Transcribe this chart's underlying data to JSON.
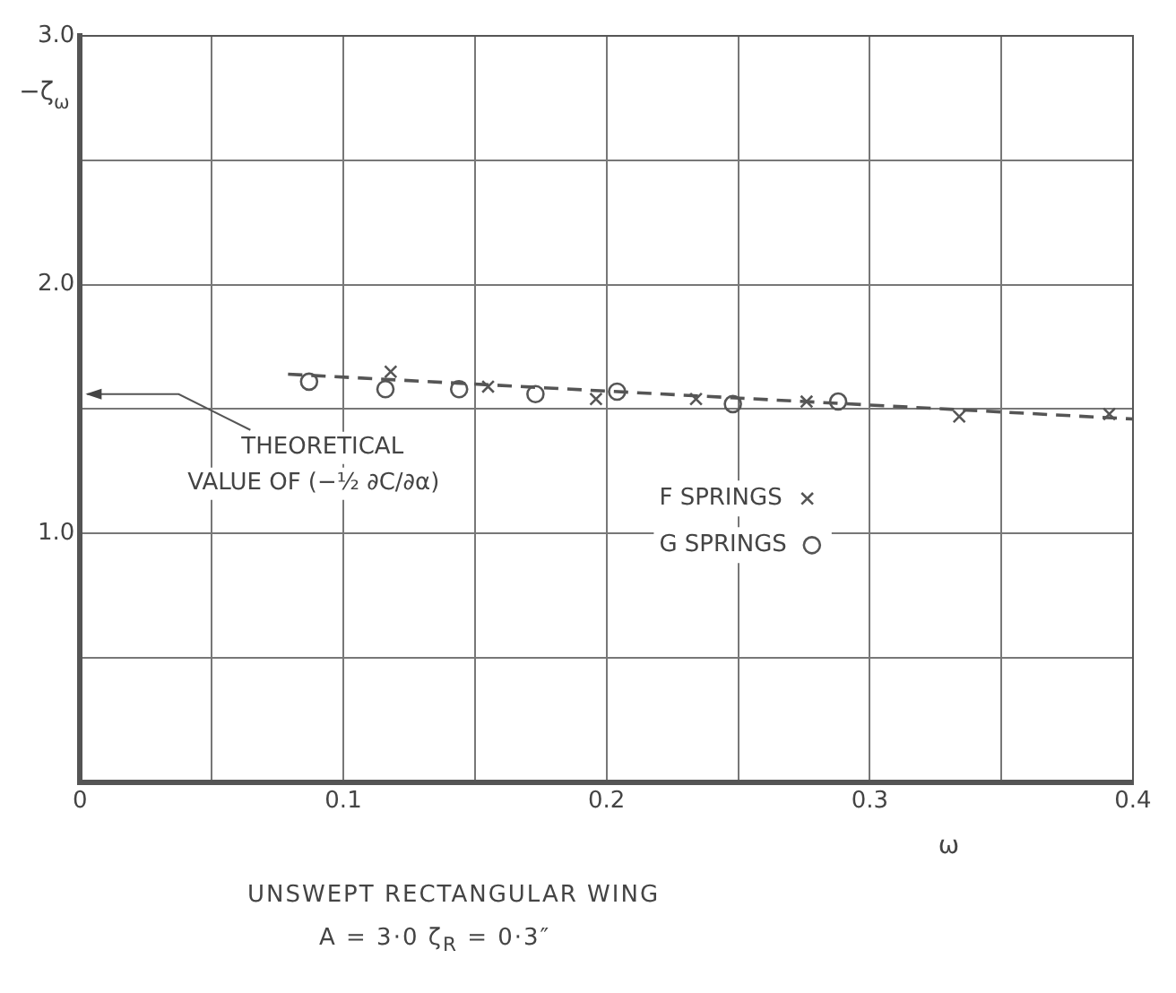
{
  "chart_data": {
    "type": "scatter",
    "xlabel": "ω",
    "ylabel": "−ζ$_{ω}$",
    "xlim": [
      0,
      0.4
    ],
    "ylim": [
      0,
      3
    ],
    "xticks": [
      0,
      {
        "value": 0.05,
        "label": null
      },
      0.1,
      {
        "value": 0.15,
        "label": null
      },
      0.2,
      {
        "value": 0.25,
        "label": null
      },
      0.3,
      {
        "value": 0.35,
        "label": null
      },
      0.4
    ],
    "yticks": [
      {
        "value": 0,
        "label": null
      },
      {
        "value": 0.5,
        "label": null
      },
      {
        "value": 1,
        "label": "1.0"
      },
      {
        "value": 1.5,
        "label": null
      },
      {
        "value": 2,
        "label": "2.0"
      },
      {
        "value": 2.5,
        "label": null
      },
      {
        "value": 3,
        "label": "3.0"
      }
    ],
    "grid": true,
    "legend": "center",
    "series": [
      {
        "name": "F SPRINGS",
        "marker": "cross",
        "color": "#555555",
        "x": [
          0.118,
          0.155,
          0.196,
          0.234,
          0.276,
          0.334,
          0.391
        ],
        "values": [
          1.65,
          1.59,
          1.54,
          1.54,
          1.53,
          1.47,
          1.48
        ]
      },
      {
        "name": "G SPRINGS",
        "marker": "circle",
        "color": "#555555",
        "x": [
          0.087,
          0.116,
          0.144,
          0.173,
          0.204,
          0.248,
          0.288
        ],
        "values": [
          1.61,
          1.58,
          1.58,
          1.56,
          1.57,
          1.52,
          1.53
        ]
      },
      {
        "type": "line",
        "line_style": "dashed",
        "marker": "none",
        "color": "#555555",
        "x": [
          0.079,
          0.4
        ],
        "values": [
          1.64,
          1.46
        ]
      }
    ],
    "annotations": [
      "THEORETICAL VALUE OF (−½ ∂C/∂α)",
      "UNSWEPT RECTANGULAR WING",
      "A = 3·0   ζ$_{R}$ = 0·3″"
    ]
  }
}
